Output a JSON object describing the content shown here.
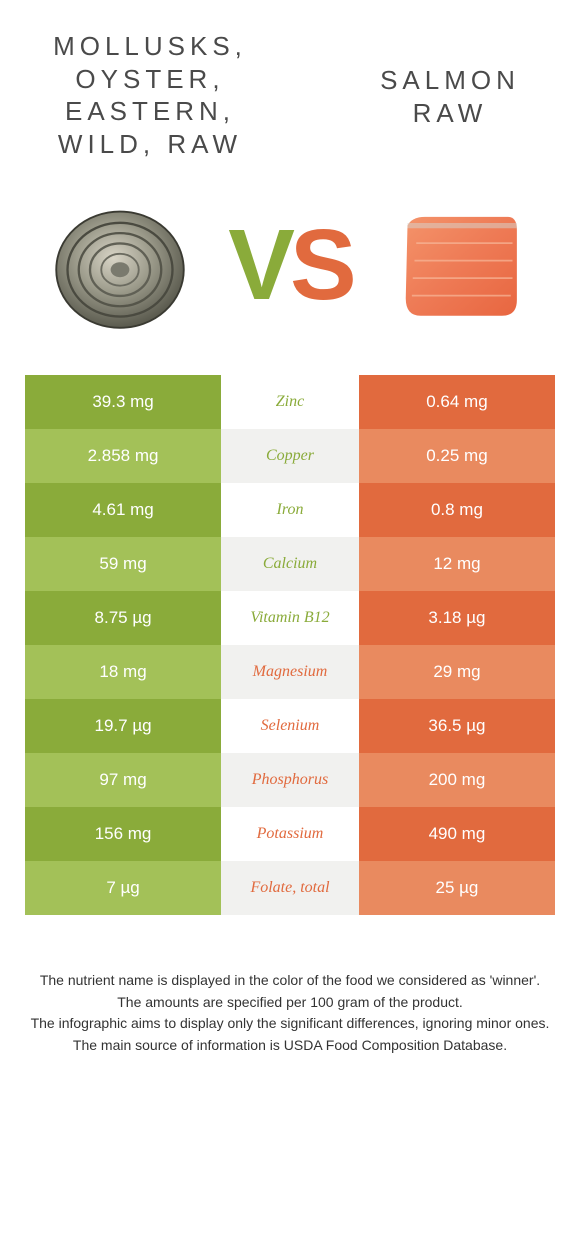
{
  "header": {
    "left_title": "MOLLUSKS, OYSTER, EASTERN, WILD, RAW",
    "right_title": "SALMON RAW",
    "vs_v": "V",
    "vs_s": "S"
  },
  "colors": {
    "green_dark": "#8aab3a",
    "green_light": "#a3c158",
    "orange_dark": "#e16a3e",
    "orange_light": "#e98a5f",
    "white": "#ffffff",
    "gray": "#f1f1ef",
    "text_dark": "#4a4a4a"
  },
  "table": {
    "rows": [
      {
        "left": "39.3 mg",
        "name": "Zinc",
        "right": "0.64 mg",
        "winner": "left"
      },
      {
        "left": "2.858 mg",
        "name": "Copper",
        "right": "0.25 mg",
        "winner": "left"
      },
      {
        "left": "4.61 mg",
        "name": "Iron",
        "right": "0.8 mg",
        "winner": "left"
      },
      {
        "left": "59 mg",
        "name": "Calcium",
        "right": "12 mg",
        "winner": "left"
      },
      {
        "left": "8.75 µg",
        "name": "Vitamin B12",
        "right": "3.18 µg",
        "winner": "left"
      },
      {
        "left": "18 mg",
        "name": "Magnesium",
        "right": "29 mg",
        "winner": "right"
      },
      {
        "left": "19.7 µg",
        "name": "Selenium",
        "right": "36.5 µg",
        "winner": "right"
      },
      {
        "left": "97 mg",
        "name": "Phosphorus",
        "right": "200 mg",
        "winner": "right"
      },
      {
        "left": "156 mg",
        "name": "Potassium",
        "right": "490 mg",
        "winner": "right"
      },
      {
        "left": "7 µg",
        "name": "Folate, total",
        "right": "25 µg",
        "winner": "right"
      }
    ]
  },
  "footer": {
    "line1": "The nutrient name is displayed in the color of the food we considered as 'winner'.",
    "line2": "The amounts are specified per 100 gram of the product.",
    "line3": "The infographic aims to display only the significant differences, ignoring minor ones.",
    "line4": "The main source of information is USDA Food Composition Database."
  }
}
